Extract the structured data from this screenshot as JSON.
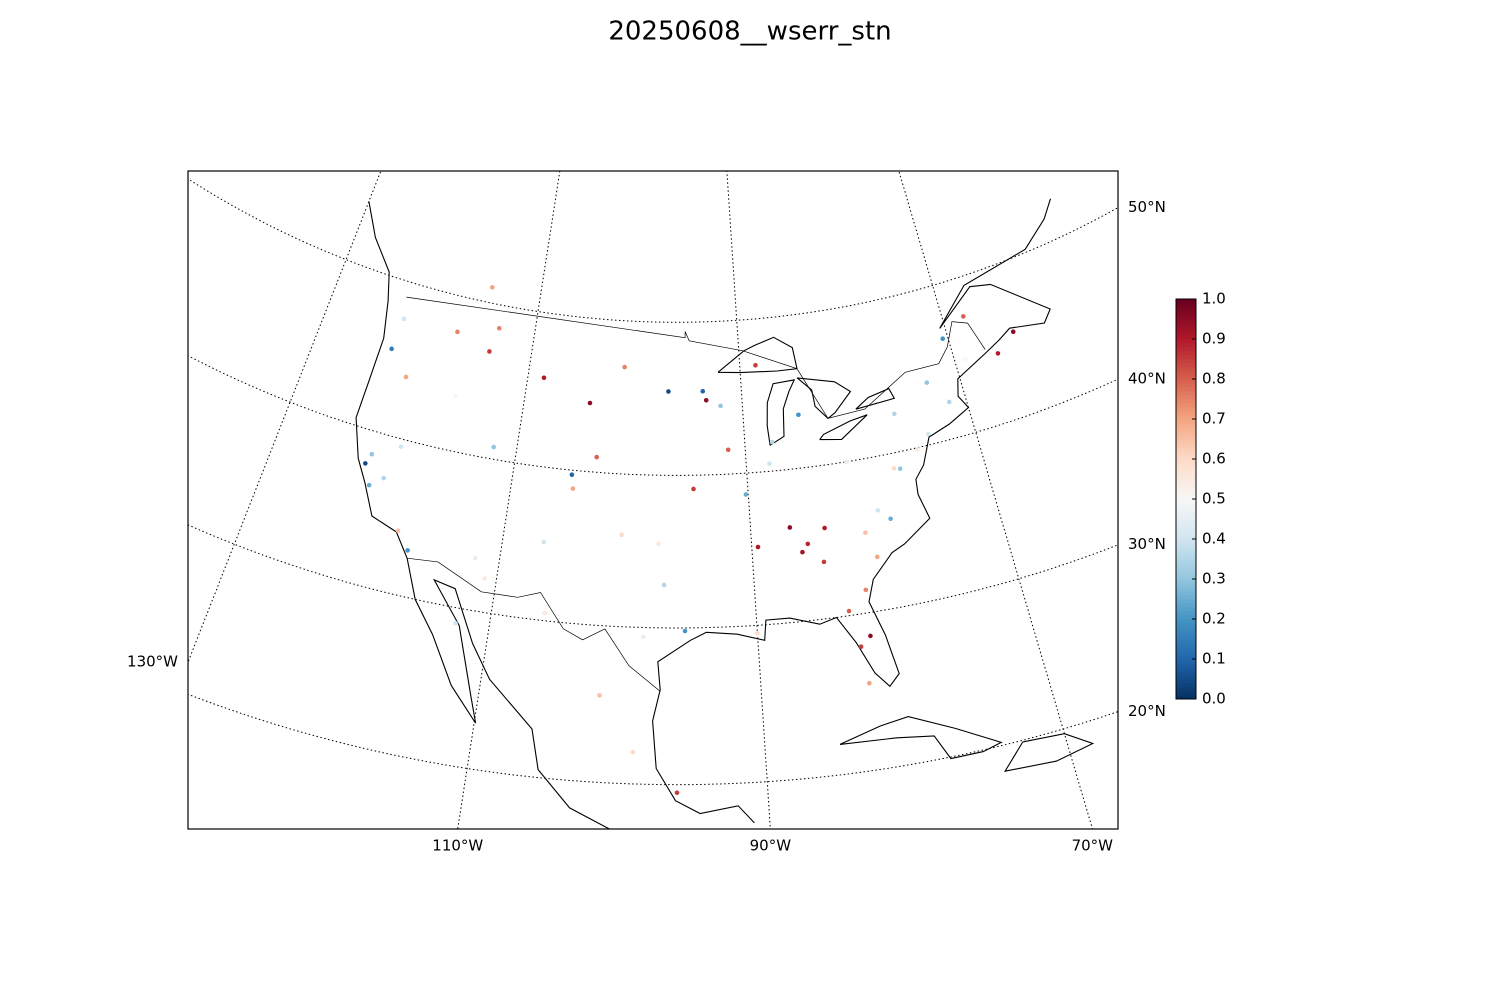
{
  "chart_data": {
    "type": "map",
    "title": "20250608__wserr_stn",
    "lat_ticks": [
      {
        "value": 20,
        "label": "20°N"
      },
      {
        "value": 30,
        "label": "30°N"
      },
      {
        "value": 40,
        "label": "40°N"
      },
      {
        "value": 50,
        "label": "50°N"
      }
    ],
    "lon_ticks": [
      {
        "value": -130,
        "label": "130°W"
      },
      {
        "value": -110,
        "label": "110°W"
      },
      {
        "value": -90,
        "label": "90°W"
      },
      {
        "value": -70,
        "label": "70°W"
      }
    ],
    "clim": [
      0,
      1
    ],
    "colorbar_ticks": [
      {
        "value": 0,
        "label": "0.0"
      },
      0.1,
      0.2,
      0.3,
      0.4,
      0.5,
      0.6,
      0.7,
      0.8,
      0.9,
      {
        "value": 1,
        "label": "1.0"
      }
    ],
    "colormap": [
      "#053061",
      "#2166ac",
      "#4393c3",
      "#92c5de",
      "#d1e5f0",
      "#f7f7f7",
      "#fddbc7",
      "#f4a582",
      "#d6604d",
      "#b2182b",
      "#67001f"
    ],
    "lon": [
      -122.3,
      -122.0,
      -121.5,
      -120.5,
      -119.8,
      -118.3,
      -117.2,
      -123.0,
      -122.7,
      -121.0,
      -117.4,
      -116.2,
      -114.0,
      -112.0,
      -111.9,
      -110.9,
      -108.5,
      -106.7,
      -105.0,
      -104.8,
      -104.0,
      -103.0,
      -101.0,
      -100.5,
      -98.5,
      -97.5,
      -97.0,
      -96.8,
      -95.4,
      -94.6,
      -93.3,
      -93.6,
      -92.0,
      -91.5,
      -90.2,
      -89.5,
      -88.0,
      -87.6,
      -86.8,
      -86.0,
      -85.5,
      -84.4,
      -84.0,
      -83.0,
      -82.5,
      -81.7,
      -81.4,
      -80.8,
      -80.2,
      -79.5,
      -78.6,
      -77.5,
      -77.0,
      -76.5,
      -75.2,
      -74.0,
      -73.0,
      -71.5,
      -70.5,
      -69.0,
      -68.0,
      -66.0,
      -64.0,
      -82.3,
      -81.5,
      -96.0,
      -99.0,
      -101.5,
      -106.0,
      -112.5,
      -113.5,
      -115.0,
      -90.0,
      -88.5,
      -85.0
    ],
    "lat": [
      37.8,
      38.5,
      36.5,
      37.2,
      39.5,
      34.1,
      33.0,
      45.5,
      47.6,
      44.0,
      47.7,
      43.6,
      46.9,
      40.8,
      33.4,
      32.2,
      45.8,
      35.1,
      39.7,
      38.8,
      44.5,
      41.0,
      47.0,
      36.0,
      29.4,
      35.5,
      32.8,
      45.5,
      29.8,
      39.1,
      44.9,
      45.5,
      44.5,
      41.6,
      38.6,
      35.1,
      40.5,
      41.9,
      36.2,
      34.5,
      35.0,
      33.7,
      35.9,
      30.3,
      27.9,
      28.5,
      40.0,
      35.2,
      33.5,
      36.5,
      35.8,
      39.0,
      38.9,
      42.5,
      39.9,
      40.7,
      44.0,
      42.4,
      46.5,
      44.8,
      47.5,
      44.5,
      45.5,
      25.5,
      31.5,
      19.5,
      22.0,
      25.5,
      30.5,
      29.0,
      48.5,
      51.0,
      29.5,
      47.0,
      43.5
    ],
    "values": [
      0.05,
      0.3,
      0.25,
      0.35,
      0.4,
      0.65,
      0.2,
      0.15,
      0.4,
      0.7,
      0.75,
      0.5,
      0.85,
      0.3,
      0.45,
      0.55,
      0.9,
      0.4,
      0.1,
      0.7,
      0.95,
      0.8,
      0.75,
      0.6,
      0.45,
      0.55,
      0.35,
      0.05,
      0.2,
      0.85,
      0.95,
      0.1,
      0.3,
      0.8,
      0.25,
      0.9,
      0.4,
      0.35,
      0.95,
      0.92,
      0.88,
      0.85,
      0.9,
      0.8,
      0.85,
      0.95,
      0.45,
      0.65,
      0.7,
      0.4,
      0.25,
      0.6,
      0.3,
      0.35,
      0.55,
      0.4,
      0.3,
      0.35,
      0.2,
      0.5,
      0.8,
      0.9,
      0.95,
      0.7,
      0.75,
      0.85,
      0.6,
      0.65,
      0.55,
      0.4,
      0.75,
      0.7,
      0.6,
      0.85,
      0.2
    ]
  }
}
